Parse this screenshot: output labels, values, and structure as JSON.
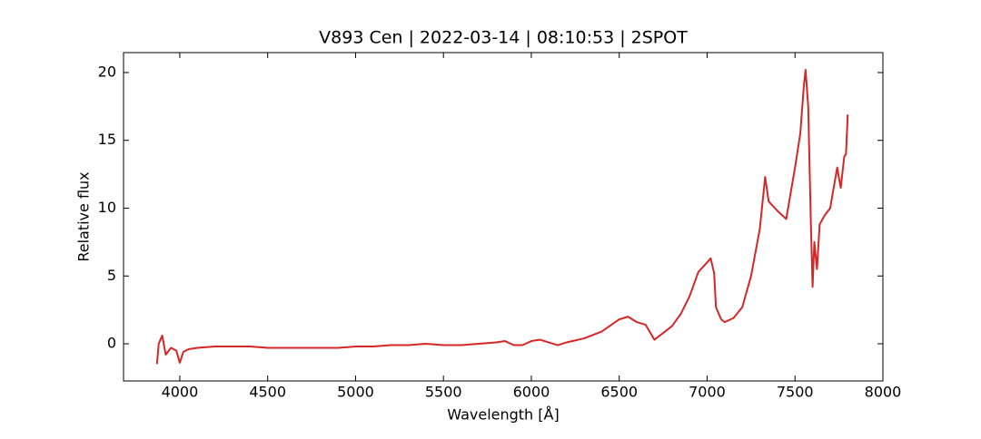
{
  "chart_data": {
    "type": "line",
    "title": "V893 Cen | 2022-03-14 | 08:10:53 | 2SPOT",
    "x_label": "Wavelength [Å]",
    "y_label": "Relative flux",
    "x": [
      3870,
      3880,
      3900,
      3920,
      3950,
      3980,
      4000,
      4020,
      4050,
      4100,
      4200,
      4300,
      4400,
      4500,
      4600,
      4700,
      4800,
      4900,
      5000,
      5100,
      5200,
      5300,
      5400,
      5500,
      5600,
      5700,
      5800,
      5850,
      5900,
      5950,
      6000,
      6050,
      6100,
      6150,
      6200,
      6300,
      6400,
      6500,
      6550,
      6600,
      6650,
      6700,
      6750,
      6800,
      6850,
      6900,
      6950,
      7000,
      7020,
      7040,
      7050,
      7080,
      7100,
      7150,
      7200,
      7250,
      7300,
      7330,
      7350,
      7400,
      7450,
      7500,
      7530,
      7550,
      7560,
      7575,
      7590,
      7600,
      7610,
      7625,
      7640,
      7670,
      7700,
      7720,
      7740,
      7760,
      7780,
      7790,
      7800
    ],
    "series": [
      {
        "color": "#d62728",
        "values": [
          -1.5,
          0,
          0.6,
          -0.8,
          -0.3,
          -0.5,
          -1.4,
          -0.6,
          -0.4,
          -0.3,
          -0.2,
          -0.2,
          -0.2,
          -0.3,
          -0.3,
          -0.3,
          -0.3,
          -0.3,
          -0.2,
          -0.2,
          -0.1,
          -0.1,
          0,
          -0.1,
          -0.1,
          0,
          0.1,
          0.2,
          -0.1,
          -0.1,
          0.2,
          0.3,
          0.1,
          -0.1,
          0.1,
          0.4,
          0.9,
          1.8,
          2.0,
          1.6,
          1.4,
          0.3,
          0.8,
          1.3,
          2.2,
          3.5,
          5.3,
          6.0,
          6.3,
          5.2,
          2.7,
          1.8,
          1.6,
          1.9,
          2.7,
          5.0,
          8.5,
          12.3,
          10.5,
          9.8,
          9.2,
          13.0,
          15.5,
          19.0,
          20.2,
          17.5,
          9.0,
          4.2,
          7.5,
          5.5,
          8.8,
          9.5,
          10.0,
          11.5,
          13.0,
          11.5,
          13.8,
          14.0,
          16.9
        ]
      }
    ],
    "xlim": [
      3680,
      8000
    ],
    "ylim": [
      -2.74,
      21.47
    ],
    "xticks": [
      4000,
      4500,
      5000,
      5500,
      6000,
      6500,
      7000,
      7500,
      8000
    ],
    "yticks": [
      0,
      5,
      10,
      15,
      20
    ]
  }
}
